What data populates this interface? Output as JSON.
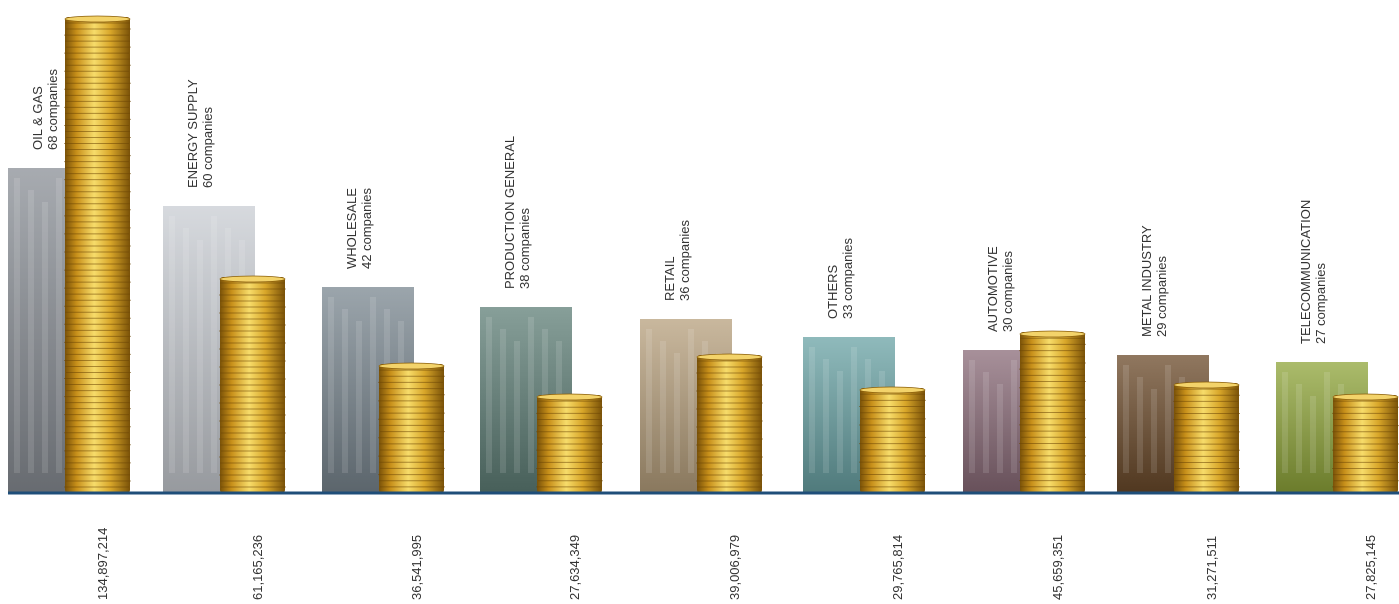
{
  "chart_data": {
    "type": "bar",
    "categories": [
      {
        "name": "OIL & GAS",
        "companies": "68 companies",
        "value_label": "134,897,214",
        "value": 134897214,
        "photo": "oil-pump",
        "photo_color": "#8a8f96"
      },
      {
        "name": "ENERGY SUPPLY",
        "companies": "60 companies",
        "value_label": "61,165,236",
        "value": 61165236,
        "photo": "power-pylon",
        "photo_color": "#c9cdd3"
      },
      {
        "name": "WHOLESALE",
        "companies": "42 companies",
        "value_label": "36,541,995",
        "value": 36541995,
        "photo": "warehouse",
        "photo_color": "#7a8790"
      },
      {
        "name": "PRODUCTION GENERAL",
        "companies": "38 companies",
        "value_label": "27,634,349",
        "value": 27634349,
        "photo": "production-line",
        "photo_color": "#5f7f77"
      },
      {
        "name": "RETAIL",
        "companies": "36 companies",
        "value_label": "39,006,979",
        "value": 39006979,
        "photo": "shoppers",
        "photo_color": "#b7a07d"
      },
      {
        "name": "OTHERS",
        "companies": "33 companies",
        "value_label": "29,765,814",
        "value": 29765814,
        "photo": "textiles",
        "photo_color": "#6aa3a5"
      },
      {
        "name": "AUTOMOTIVE",
        "companies": "30 companies",
        "value_label": "45,659,351",
        "value": 45659351,
        "photo": "car-factory",
        "photo_color": "#8a6b78"
      },
      {
        "name": "METAL INDUSTRY",
        "companies": "29 companies",
        "value_label": "31,271,511",
        "value": 31271511,
        "photo": "furnace",
        "photo_color": "#6b4a2a"
      },
      {
        "name": "TELECOMMUNICATION",
        "companies": "27 companies",
        "value_label": "27,825,145",
        "value": 27825145,
        "photo": "cables",
        "photo_color": "#8fa53a"
      }
    ],
    "axis_line_color": "#1f4e79",
    "coin_color": "#d9a520",
    "legend": "none",
    "grid": false
  }
}
